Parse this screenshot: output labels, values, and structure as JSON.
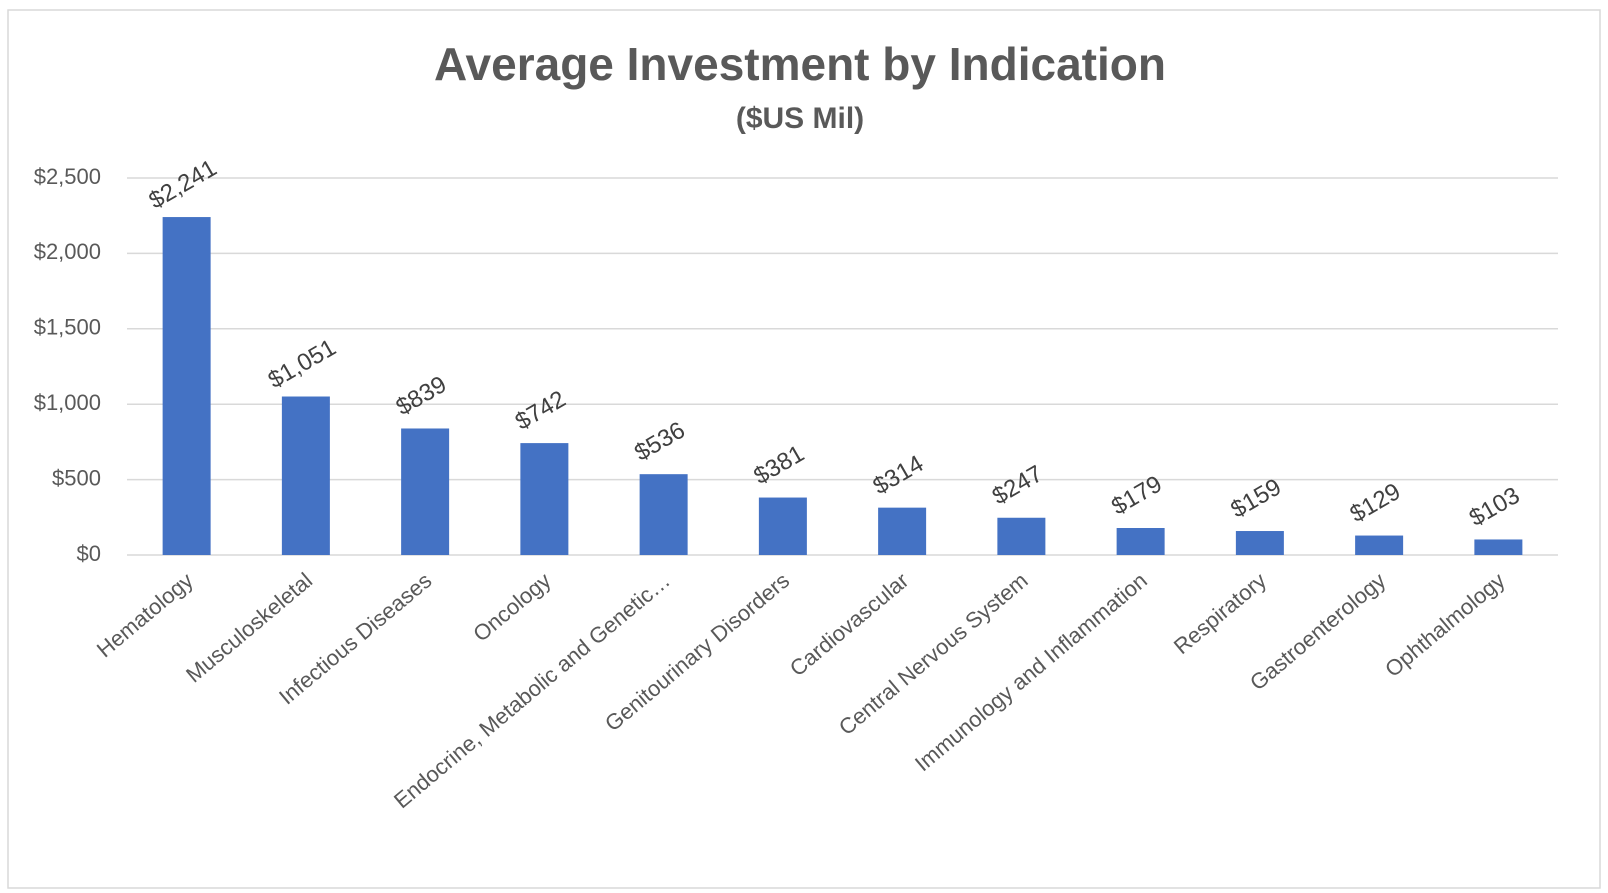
{
  "chart_data": {
    "type": "bar",
    "title": "Average Investment by Indication",
    "subtitle": "($US Mil)",
    "categories": [
      "Hematology",
      "Musculoskeletal",
      "Infectious Diseases",
      "Oncology",
      "Endocrine, Metabolic and Genetic…",
      "Genitourinary Disorders",
      "Cardiovascular",
      "Central Nervous System",
      "Immunology and Inflammation",
      "Respiratory",
      "Gastroenterology",
      "Ophthalmology"
    ],
    "values": [
      2241,
      1051,
      839,
      742,
      536,
      381,
      314,
      247,
      179,
      159,
      129,
      103
    ],
    "value_labels": [
      "$2,241",
      "$1,051",
      "$839",
      "$742",
      "$536",
      "$381",
      "$314",
      "$247",
      "$179",
      "$159",
      "$129",
      "$103"
    ],
    "color": "#4472c4",
    "ylim": [
      0,
      2500
    ],
    "yticks": [
      {
        "value": 0,
        "label": "$0"
      },
      {
        "value": 500,
        "label": "$500"
      },
      {
        "value": 1000,
        "label": "$1,000"
      },
      {
        "value": 1500,
        "label": "$1,500"
      },
      {
        "value": 2000,
        "label": "$2,000"
      },
      {
        "value": 2500,
        "label": "$2,500"
      }
    ],
    "grid": true
  }
}
